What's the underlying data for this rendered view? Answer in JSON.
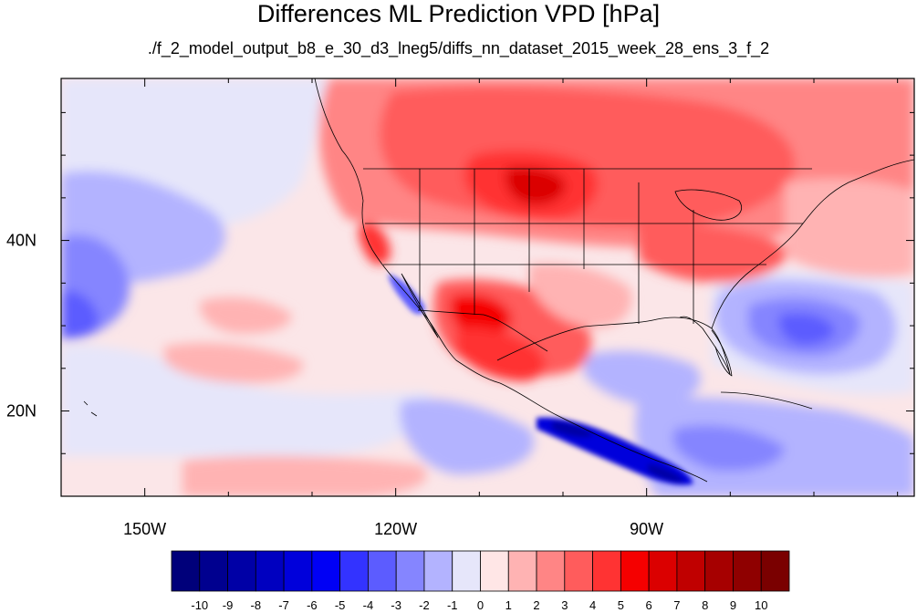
{
  "title": "Differences ML Prediction VPD [hPa]",
  "subtitle": "./f_2_model_output_b8_e_30_d3_lneg5/diffs_nn_dataset_2015_week_28_ens_3_f_2",
  "map": {
    "lon_range": [
      -160,
      -58
    ],
    "lat_range": [
      10,
      59
    ],
    "x_ticks": [
      {
        "lon": -150,
        "label": "150W"
      },
      {
        "lon": -120,
        "label": "120W"
      },
      {
        "lon": -90,
        "label": "90W"
      }
    ],
    "y_ticks": [
      {
        "lat": 40,
        "label": "40N"
      },
      {
        "lat": 20,
        "label": "20N"
      }
    ],
    "field": "VPD difference (hPa)"
  },
  "colorbar": {
    "labels": [
      "-10",
      "-9",
      "-8",
      "-7",
      "-6",
      "-5",
      "-4",
      "-3",
      "-2",
      "-1",
      "0",
      "1",
      "2",
      "3",
      "4",
      "5",
      "6",
      "7",
      "8",
      "9",
      "10"
    ],
    "colors": [
      "#00007a",
      "#00008f",
      "#0000a6",
      "#0000c0",
      "#0000db",
      "#0000f5",
      "#3333ff",
      "#5c5cff",
      "#8585ff",
      "#b3b3ff",
      "#e6e6fa",
      "#ffe6e6",
      "#ffb3b3",
      "#ff8585",
      "#ff5c5c",
      "#ff3333",
      "#f50000",
      "#db0000",
      "#c00000",
      "#a60000",
      "#8f0000",
      "#7a0000"
    ]
  }
}
